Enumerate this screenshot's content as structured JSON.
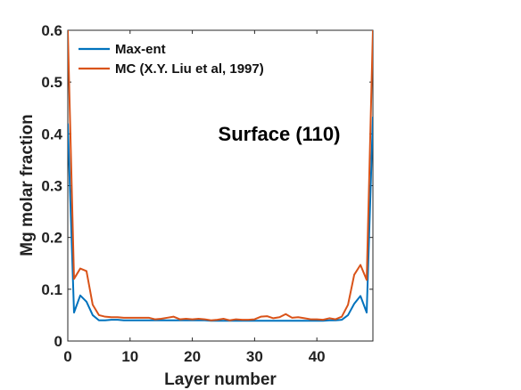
{
  "chart_data": {
    "type": "line",
    "title": "",
    "xlabel": "Layer number",
    "ylabel": "Mg molar fraction",
    "xlim": [
      0,
      49
    ],
    "ylim": [
      0,
      0.6
    ],
    "xticks": [
      0,
      10,
      20,
      30,
      40
    ],
    "xtick_labels": [
      "0",
      "10",
      "20",
      "30",
      "40"
    ],
    "yticks": [
      0,
      0.1,
      0.2,
      0.3,
      0.4,
      0.5,
      0.6
    ],
    "ytick_labels": [
      "0",
      "0.1",
      "0.2",
      "0.3",
      "0.4",
      "0.5",
      "0.6"
    ],
    "grid": false,
    "legend_position": "top-left",
    "annotation": "Surface (110)",
    "x": [
      0,
      1,
      2,
      3,
      4,
      5,
      6,
      7,
      8,
      9,
      10,
      11,
      12,
      13,
      14,
      15,
      16,
      17,
      18,
      19,
      20,
      21,
      22,
      23,
      24,
      25,
      26,
      27,
      28,
      29,
      30,
      31,
      32,
      33,
      34,
      35,
      36,
      37,
      38,
      39,
      40,
      41,
      42,
      43,
      44,
      45,
      46,
      47,
      48,
      49
    ],
    "series": [
      {
        "name": "Max-ent",
        "color": "#0072BD",
        "values": [
          0.42,
          0.055,
          0.088,
          0.076,
          0.05,
          0.04,
          0.04,
          0.041,
          0.041,
          0.04,
          0.04,
          0.04,
          0.04,
          0.04,
          0.04,
          0.04,
          0.04,
          0.04,
          0.04,
          0.04,
          0.04,
          0.04,
          0.04,
          0.039,
          0.039,
          0.039,
          0.039,
          0.039,
          0.039,
          0.039,
          0.039,
          0.039,
          0.039,
          0.039,
          0.039,
          0.039,
          0.039,
          0.039,
          0.039,
          0.039,
          0.039,
          0.039,
          0.04,
          0.04,
          0.041,
          0.05,
          0.072,
          0.087,
          0.055,
          0.433
        ]
      },
      {
        "name": "MC (X.Y. Liu et al, 1997)",
        "color": "#D95319",
        "values": [
          0.6,
          0.12,
          0.14,
          0.135,
          0.07,
          0.05,
          0.047,
          0.046,
          0.046,
          0.045,
          0.045,
          0.045,
          0.045,
          0.045,
          0.042,
          0.043,
          0.045,
          0.047,
          0.042,
          0.043,
          0.042,
          0.043,
          0.042,
          0.04,
          0.041,
          0.043,
          0.04,
          0.042,
          0.041,
          0.041,
          0.042,
          0.047,
          0.048,
          0.044,
          0.046,
          0.052,
          0.045,
          0.046,
          0.044,
          0.042,
          0.042,
          0.041,
          0.044,
          0.042,
          0.047,
          0.07,
          0.128,
          0.147,
          0.118,
          0.6
        ]
      }
    ]
  }
}
